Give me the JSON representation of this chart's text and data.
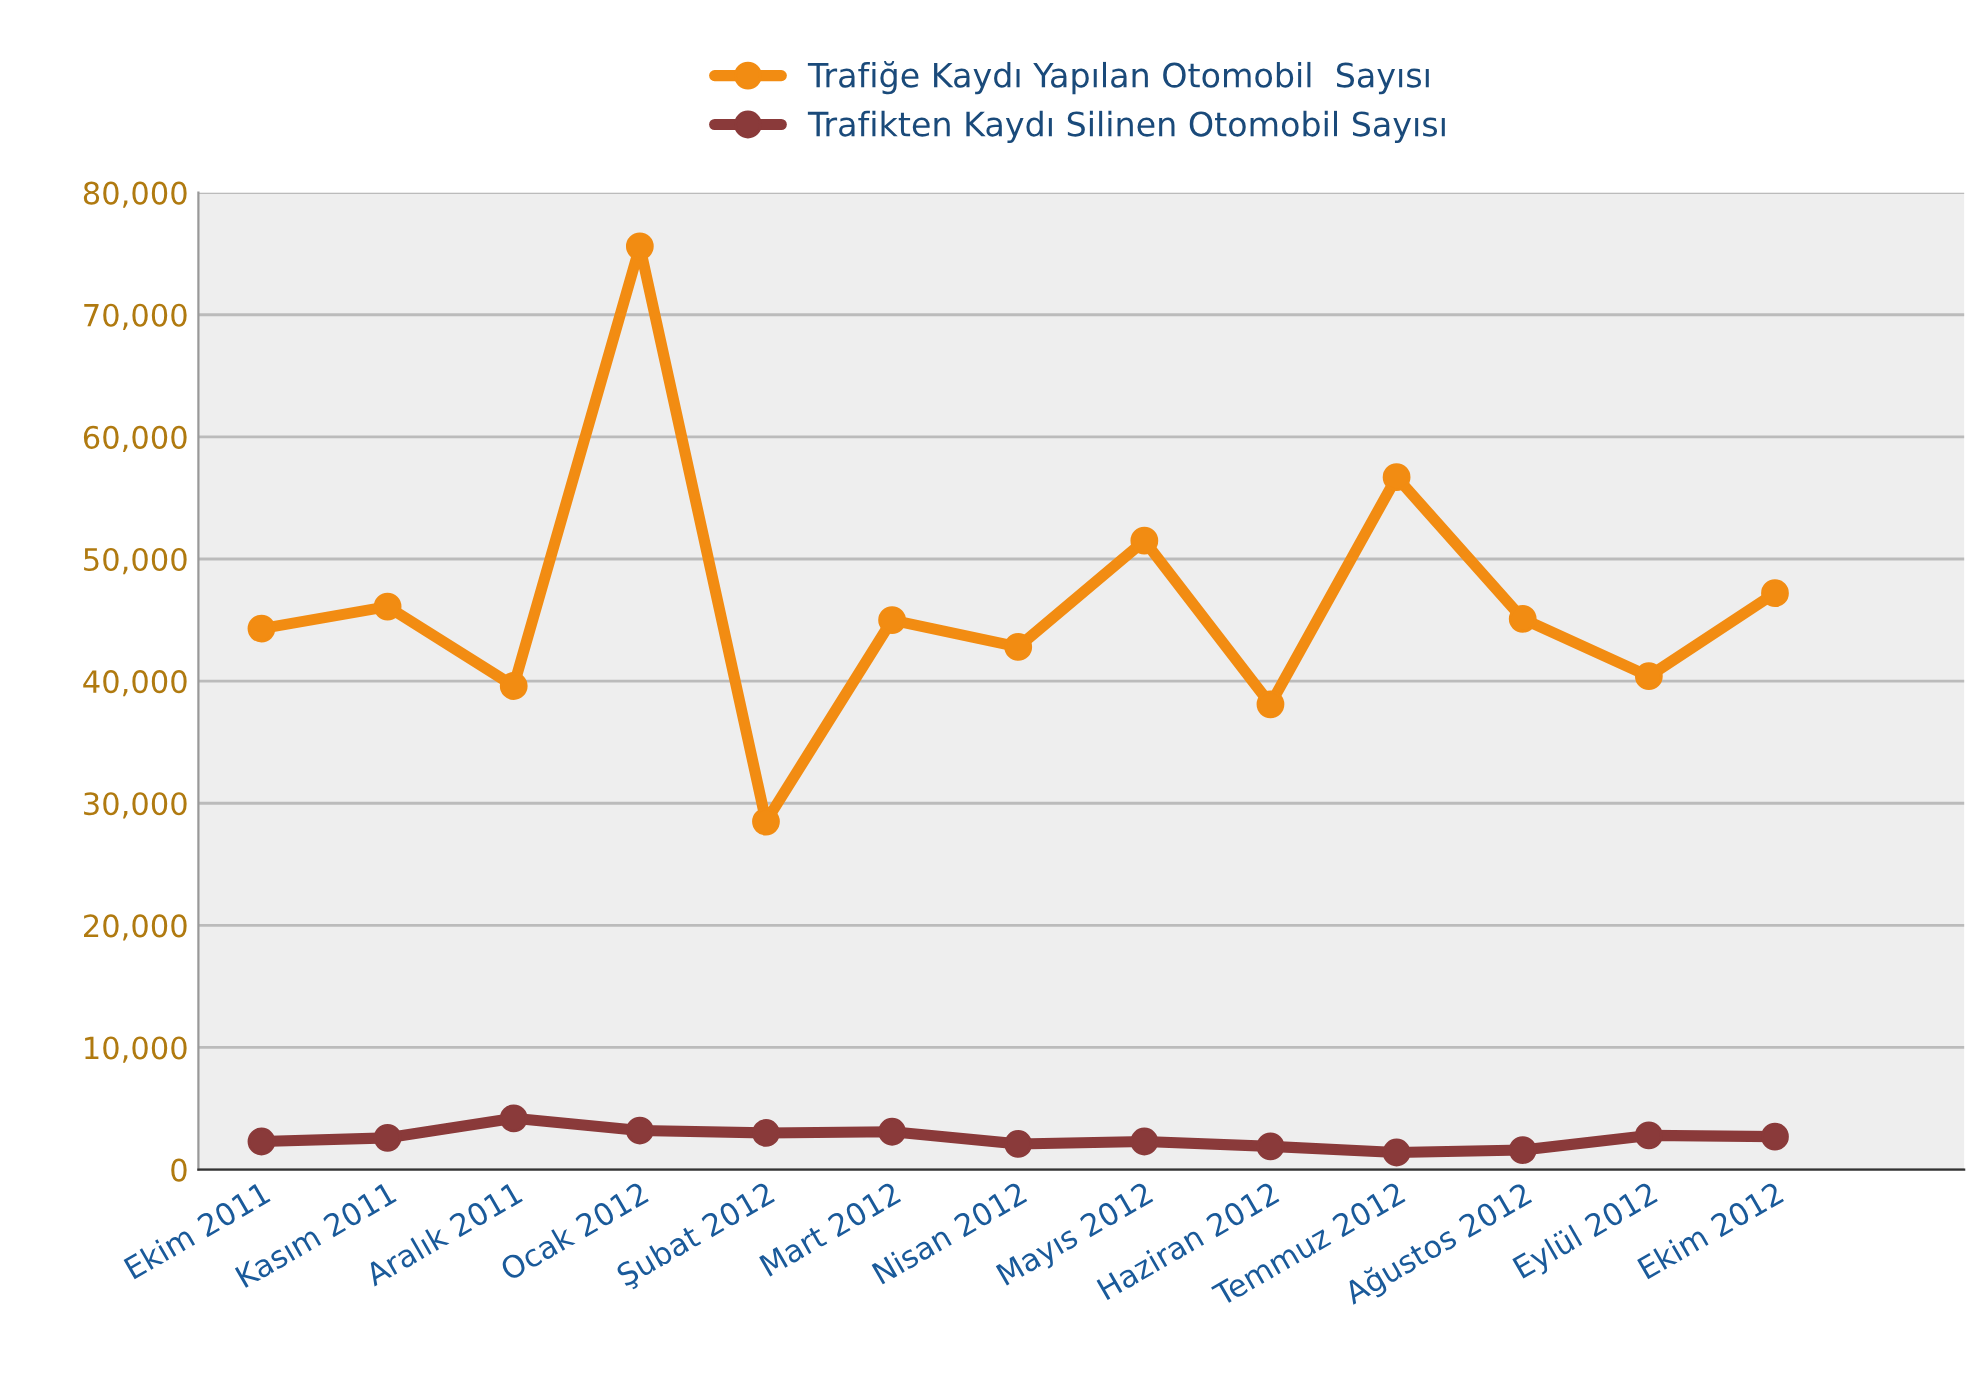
{
  "chart_data": {
    "type": "line",
    "categories": [
      "Ekim 2011",
      "Kasım 2011",
      "Aralık 2011",
      "Ocak 2012",
      "Şubat 2012",
      "Mart 2012",
      "Nisan 2012",
      "Mayıs 2012",
      "Haziran 2012",
      "Temmuz 2012",
      "Ağustos 2012",
      "Eylül 2012",
      "Ekim 2012"
    ],
    "series": [
      {
        "name": "Trafiğe Kaydı Yapılan Otomobil  Sayısı",
        "color": "#f28c12",
        "values": [
          44300,
          46100,
          39600,
          75600,
          28500,
          45000,
          42800,
          51500,
          38100,
          56700,
          45100,
          40400,
          47200
        ]
      },
      {
        "name": "Trafikten Kaydı Silinen Otomobil Sayısı",
        "color": "#8a3a3a",
        "values": [
          2300,
          2600,
          4200,
          3200,
          3000,
          3100,
          2100,
          2300,
          1900,
          1400,
          1600,
          2800,
          2700
        ]
      }
    ],
    "ylim": [
      0,
      80000
    ],
    "yticks": [
      {
        "value": 0,
        "label": "0"
      },
      {
        "value": 10000,
        "label": "10,000"
      },
      {
        "value": 20000,
        "label": "20,000"
      },
      {
        "value": 30000,
        "label": "30,000"
      },
      {
        "value": 40000,
        "label": "40,000"
      },
      {
        "value": 50000,
        "label": "50,000"
      },
      {
        "value": 60000,
        "label": "60,000"
      },
      {
        "value": 70000,
        "label": "70,000"
      },
      {
        "value": 80000,
        "label": "80,000"
      }
    ],
    "grid": "y",
    "legend": "top",
    "marker": "circle",
    "line_style": "solid"
  }
}
